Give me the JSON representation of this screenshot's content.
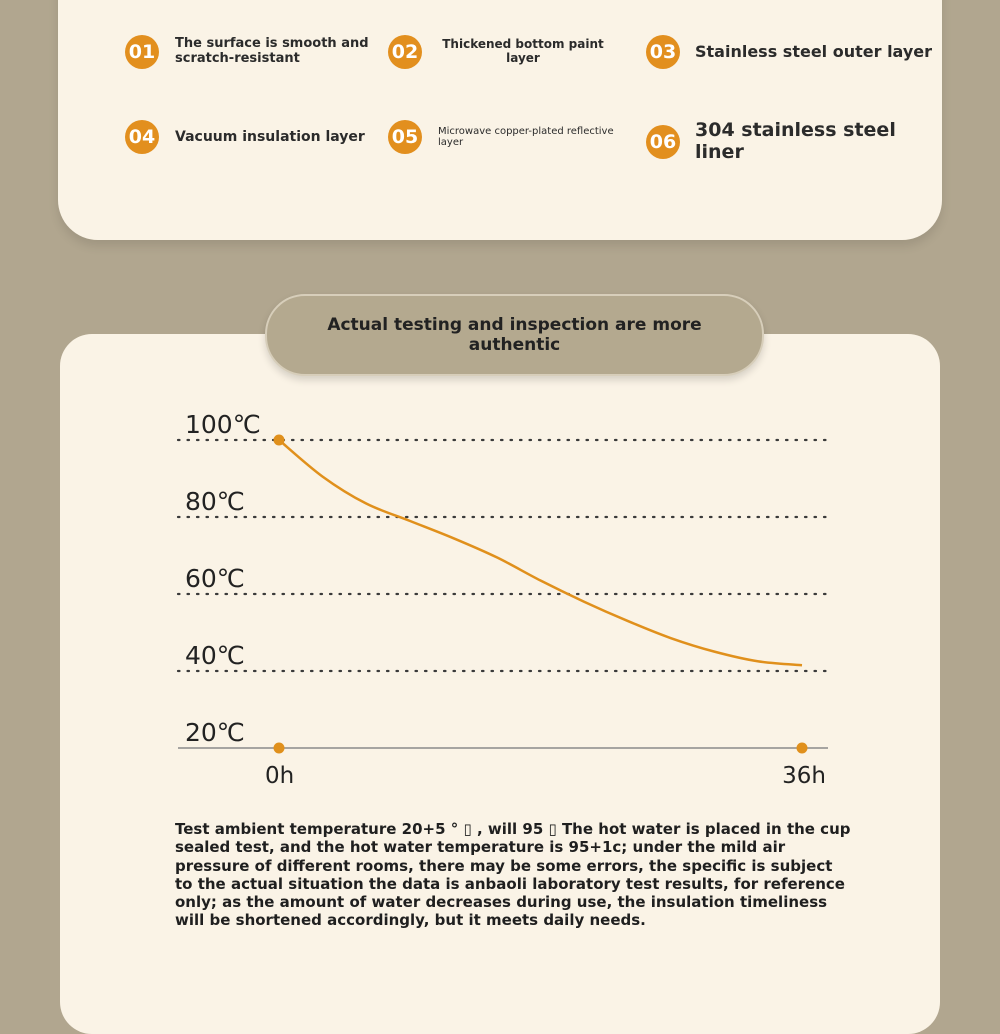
{
  "features": [
    {
      "num": "01",
      "text": "The surface is smooth and scratch-resistant"
    },
    {
      "num": "02",
      "text": "Thickened bottom paint layer"
    },
    {
      "num": "03",
      "text": "Stainless steel outer layer"
    },
    {
      "num": "04",
      "text": "Vacuum insulation layer"
    },
    {
      "num": "05",
      "text": "Microwave copper-plated reflective layer"
    },
    {
      "num": "06",
      "text": "304 stainless steel liner"
    }
  ],
  "section_title": "Actual testing and inspection are more authentic",
  "chart_data": {
    "type": "line",
    "title": "",
    "xlabel": "",
    "ylabel": "",
    "x_ticks": [
      "0h",
      "36h"
    ],
    "y_ticks": [
      "100℃",
      "80℃",
      "60℃",
      "40℃",
      "20℃"
    ],
    "ylim": [
      20,
      100
    ],
    "xlim": [
      0,
      36
    ],
    "grid": true,
    "series": [
      {
        "x": [
          0,
          3,
          6,
          9,
          12,
          15,
          18,
          21,
          24,
          27,
          30,
          33,
          36
        ],
        "y": [
          100,
          90.5,
          83.5,
          79,
          74.5,
          69.5,
          63.5,
          58,
          53,
          48.5,
          45,
          42.5,
          41.5
        ]
      }
    ],
    "markers": [
      {
        "x": 0,
        "y": 100
      },
      {
        "x": 0,
        "y": 20
      },
      {
        "x": 36,
        "y": 20
      }
    ],
    "colors": {
      "line": "#e0901c",
      "grid": "#3a3a3a",
      "axis": "#8a8a8a"
    }
  },
  "note": "Test ambient temperature 20+5 ° ▯ , will 95 ▯ The hot water is placed in the cup sealed test, and the hot water temperature is 95+1c; under the mild air pressure of different rooms, there may be some errors, the specific is subject to the actual situation the data is anbaoli laboratory test results, for reference only; as the amount of water decreases during use, the insulation timeliness will be shortened accordingly, but it meets daily needs."
}
